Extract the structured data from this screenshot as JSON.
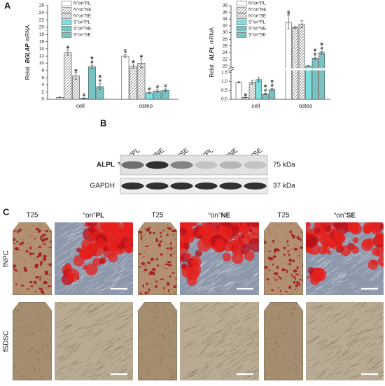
{
  "panels": [
    "A",
    "B",
    "C"
  ],
  "chart_data": [
    {
      "type": "bar",
      "ylabel": {
        "pre": "Relat.",
        "gene": "BGLAP",
        "post": "mRNA"
      },
      "categories": [
        "cell",
        "osteo"
      ],
      "ylim": [
        0,
        26
      ],
      "yticks": [
        0,
        2,
        4,
        6,
        8,
        10,
        12,
        14,
        16,
        18,
        20,
        22,
        24,
        26
      ],
      "legend": "top-left",
      "series": [
        {
          "name": "N\"on\"PL",
          "color": "#ffffff",
          "pattern": "none",
          "values": [
            0.5,
            12
          ],
          "errors": [
            0.1,
            0.5
          ],
          "sig": [
            null,
            [
              "$"
            ]
          ]
        },
        {
          "name": "N\"on\"NE",
          "color": "#ffffff",
          "pattern": "diagonal",
          "values": [
            13,
            9.2
          ],
          "errors": [
            0.8,
            0.6
          ],
          "sig": [
            [
              "*"
            ],
            [
              "*"
            ]
          ]
        },
        {
          "name": "N\"on\"SE",
          "color": "#ffffff",
          "pattern": "grid",
          "values": [
            6.5,
            10
          ],
          "errors": [
            0.9,
            1.2
          ],
          "sig": [
            [
              "*"
            ],
            [
              "*"
            ]
          ]
        },
        {
          "name": "S\"on\"PL",
          "color": "#7fdede",
          "pattern": "none",
          "values": [
            0.3,
            1.8
          ],
          "errors": [
            0.1,
            0.2
          ],
          "sig": [
            [
              "#"
            ],
            [
              "#"
            ]
          ]
        },
        {
          "name": "S\"on\"NE",
          "color": "#7fdede",
          "pattern": "diagonal",
          "values": [
            9,
            2.3
          ],
          "errors": [
            0.5,
            0.3
          ],
          "sig": [
            [
              "*",
              "#"
            ],
            [
              "#"
            ]
          ]
        },
        {
          "name": "S\"on\"SE",
          "color": "#7fdede",
          "pattern": "grid",
          "values": [
            3.5,
            2.5
          ],
          "errors": [
            0.8,
            0.4
          ],
          "sig": [
            [
              "*",
              "#"
            ],
            [
              "#"
            ]
          ]
        }
      ]
    },
    {
      "type": "bar",
      "ylabel": {
        "pre": "Relat.",
        "gene": "ALPL",
        "post": "mRNA"
      },
      "categories": [
        "cell",
        "osteo"
      ],
      "ysegments": [
        {
          "ylim": [
            0,
            1.6
          ],
          "yticks": [
            {
              "value": 0,
              "label": "0.0"
            },
            0.5,
            {
              "value": 1,
              "label": "1.0"
            },
            1.5
          ]
        },
        {
          "ylim": [
            19.5,
            38
          ],
          "yticks": [
            20,
            22,
            24,
            26,
            28,
            30,
            32,
            34,
            36,
            38
          ]
        }
      ],
      "legend": "top-left",
      "series": [
        {
          "name": "N\"on\"PL",
          "color": "#ffffff",
          "pattern": "none",
          "values": [
            0.95,
            33
          ],
          "errors": [
            0.03,
            2
          ],
          "sig": [
            null,
            [
              "$"
            ]
          ]
        },
        {
          "name": "N\"on\"NE",
          "color": "#ffffff",
          "pattern": "diagonal",
          "values": [
            0.1,
            31.5
          ],
          "errors": [
            0.02,
            0.3
          ],
          "sig": [
            [
              "*"
            ],
            null
          ]
        },
        {
          "name": "N\"on\"SE",
          "color": "#ffffff",
          "pattern": "grid",
          "values": [
            0.95,
            32.5
          ],
          "errors": [
            0.1,
            1
          ],
          "sig": [
            null,
            null
          ]
        },
        {
          "name": "S\"on\"PL",
          "color": "#7fdede",
          "pattern": "none",
          "values": [
            1.1,
            20
          ],
          "errors": [
            0.12,
            0.2
          ],
          "sig": [
            null,
            null
          ]
        },
        {
          "name": "S\"on\"NE",
          "color": "#7fdede",
          "pattern": "diagonal",
          "values": [
            0.3,
            22.3
          ],
          "errors": [
            0.03,
            0.3
          ],
          "sig": [
            [
              "*",
              "#"
            ],
            [
              "*",
              "#"
            ]
          ]
        },
        {
          "name": "S\"on\"SE",
          "color": "#7fdede",
          "pattern": "grid",
          "values": [
            0.55,
            24
          ],
          "errors": [
            0.05,
            0.4
          ],
          "sig": [
            [
              "*",
              "#"
            ],
            [
              "*",
              "#"
            ]
          ]
        }
      ]
    }
  ],
  "blot": {
    "lanes": [
      "N\"on\"PL",
      "N\"on\"NE",
      "N\"on\"SE",
      "S\"on\"PL",
      "S\"on\"NE",
      "S\"on\"SE"
    ],
    "rows": [
      {
        "name": "ALPL",
        "size": "75 kDa"
      },
      {
        "name": "GAPDH",
        "size": "37 kDa"
      }
    ]
  },
  "micrographs": {
    "columns": [
      {
        "label": "T25"
      },
      {
        "pre": "“on”",
        "bold": "PL"
      },
      {
        "label": "T25"
      },
      {
        "pre": "“on”",
        "bold": "NE"
      },
      {
        "label": "T25"
      },
      {
        "pre": "“on”",
        "bold": "SE"
      }
    ],
    "rows": [
      "fNPC",
      "fSDSC"
    ]
  }
}
